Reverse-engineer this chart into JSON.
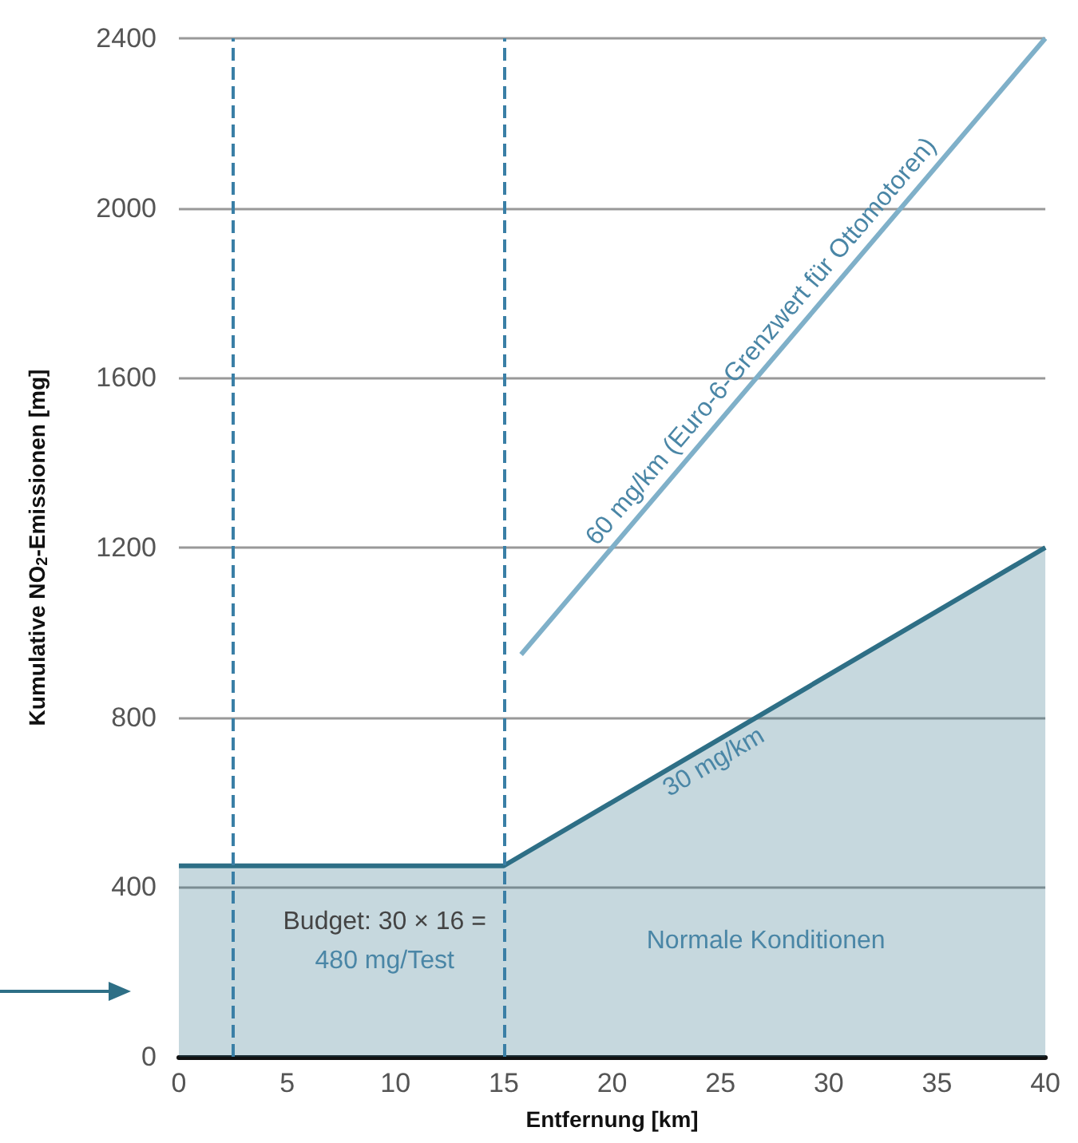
{
  "chart_data": {
    "type": "area",
    "xlabel": "Entfernung [km]",
    "ylabel": "Kumulative NO$_{2}$-Emissionen [mg]",
    "xlim": [
      0,
      40
    ],
    "xticks": [
      0,
      5,
      10,
      15,
      20,
      25,
      30,
      35,
      40
    ],
    "ylim": [
      0,
      2400
    ],
    "yticks": [
      0,
      400,
      800,
      1200,
      1600,
      2000,
      2400
    ],
    "grid": "y",
    "series": [
      {
        "color": "#2e6f86",
        "x": [
          0,
          15,
          40
        ],
        "values": [
          450,
          450,
          1200
        ]
      },
      {
        "type": "line",
        "color": "#7fb0c9",
        "x": [
          15.8,
          40
        ],
        "values": [
          948,
          2400
        ]
      }
    ],
    "ref_lines": [
      {
        "axis": "x",
        "value": 2.5,
        "color": "#3a7fa6",
        "line_style": "dashed"
      },
      {
        "axis": "x",
        "value": 15,
        "color": "#3a7fa6",
        "line_style": "dashed"
      }
    ],
    "annotations": [
      "Budget: 30 × 16 =",
      "480 mg/Test",
      "Normale Konditionen",
      "30 mg/km",
      "60 mg/km (Euro-6-Grenzwert für Ottomotoren)"
    ]
  }
}
